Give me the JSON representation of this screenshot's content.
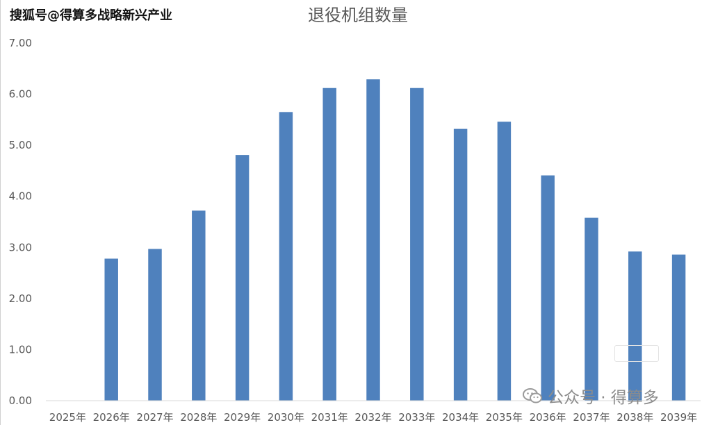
{
  "watermark_top": "搜狐号@得算多战略新兴产业",
  "watermark_bottom": "公众号 · 得算多",
  "watermark_stamp": "",
  "colors": {
    "bar": "#4f81bd",
    "axis": "#d9d9d9",
    "text": "#595959",
    "title": "#595959"
  },
  "icons": {
    "wechat": "wechat-logo-icon"
  },
  "chart_data": {
    "type": "bar",
    "title": "退役机组数量",
    "xlabel": "",
    "ylabel": "",
    "ylim": [
      0,
      7
    ],
    "yticks": [
      "0.00",
      "1.00",
      "2.00",
      "3.00",
      "4.00",
      "5.00",
      "6.00",
      "7.00"
    ],
    "categories": [
      "2025年",
      "2026年",
      "2027年",
      "2028年",
      "2029年",
      "2030年",
      "2031年",
      "2032年",
      "2033年",
      "2034年",
      "2035年",
      "2036年",
      "2037年",
      "2038年",
      "2039年"
    ],
    "values": [
      0,
      2.78,
      2.97,
      3.72,
      4.81,
      5.65,
      6.12,
      6.29,
      6.12,
      5.32,
      5.46,
      4.41,
      3.58,
      2.92,
      2.86
    ],
    "grid": false,
    "legend": "none"
  }
}
